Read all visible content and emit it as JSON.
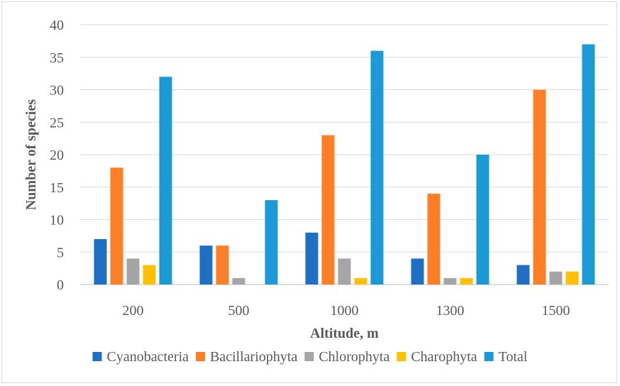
{
  "chart_data": {
    "type": "bar",
    "title": "",
    "xlabel": "Altitude, m",
    "ylabel": "Number of species",
    "categories": [
      "200",
      "500",
      "1000",
      "1300",
      "1500"
    ],
    "ylim": [
      0,
      40
    ],
    "yticks": [
      "0",
      "5",
      "10",
      "15",
      "20",
      "25",
      "30",
      "35",
      "40"
    ],
    "grid": true,
    "legend_position": "bottom",
    "series": [
      {
        "name": "Cyanobacteria",
        "color": "#1f6fc5",
        "values": [
          7,
          6,
          8,
          4,
          3
        ]
      },
      {
        "name": "Bacillariophyta",
        "color": "#ff7f27",
        "values": [
          18,
          6,
          23,
          14,
          30
        ]
      },
      {
        "name": "Chlorophyta",
        "color": "#a5a5a5",
        "values": [
          4,
          1,
          4,
          1,
          2
        ]
      },
      {
        "name": "Charophyta",
        "color": "#ffc000",
        "values": [
          3,
          0,
          1,
          1,
          2
        ]
      },
      {
        "name": "Total",
        "color": "#1b9ad6",
        "values": [
          32,
          13,
          36,
          20,
          37
        ]
      }
    ]
  }
}
